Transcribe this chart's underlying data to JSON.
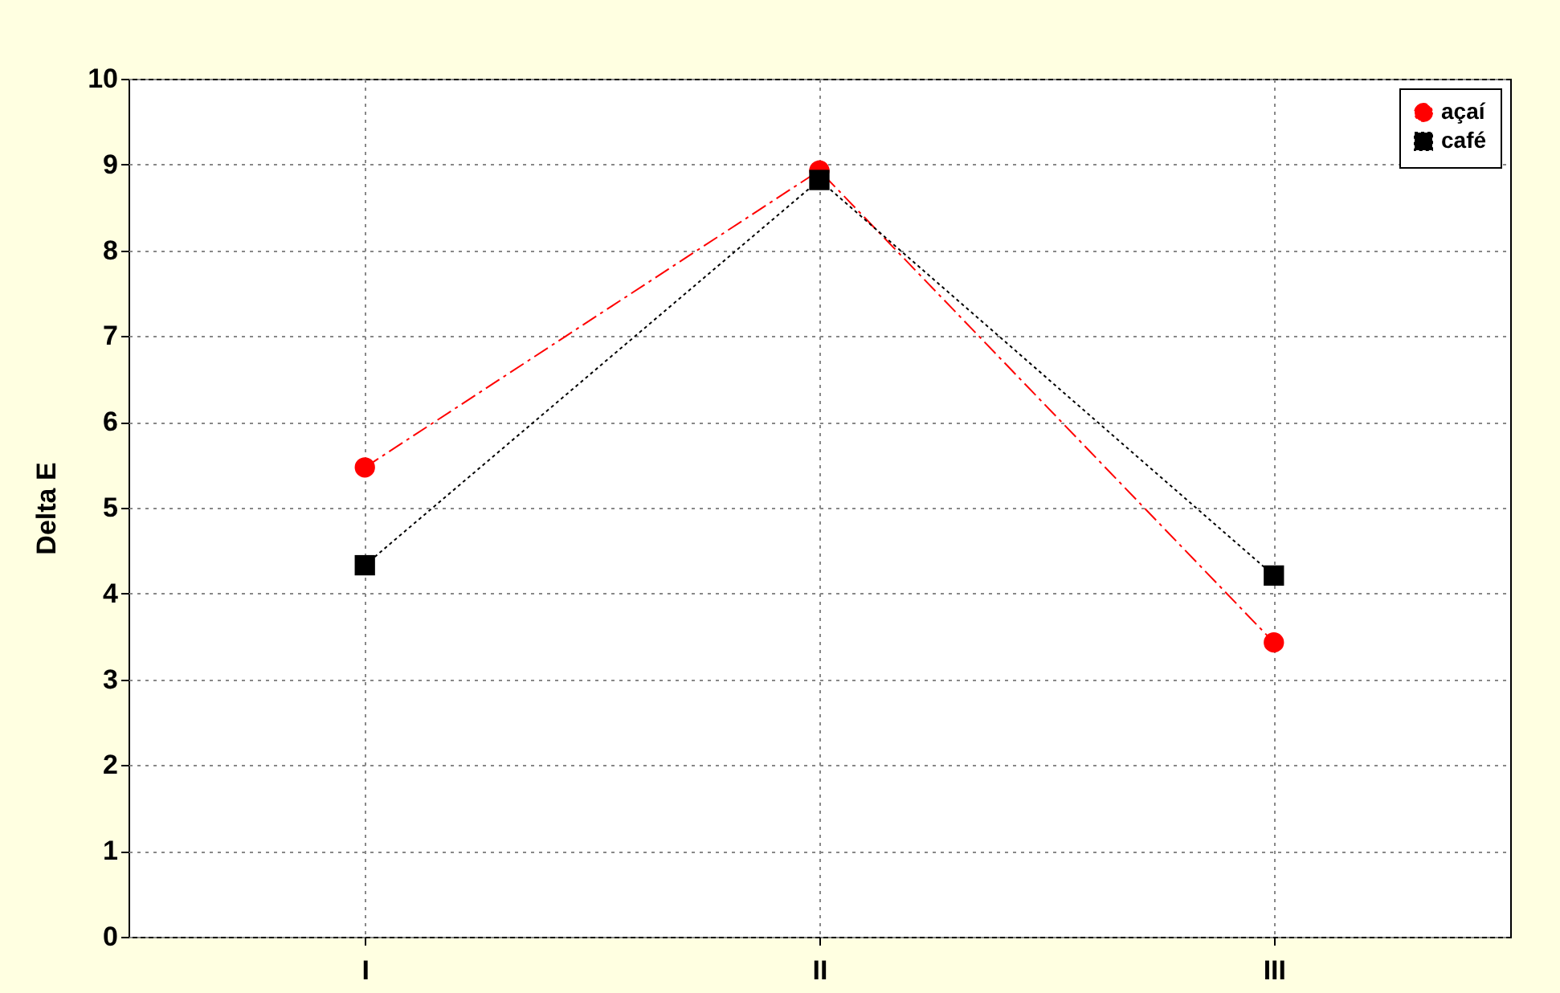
{
  "chart_data": {
    "type": "line",
    "ylabel": "Delta E",
    "categories": [
      "I",
      "II",
      "III"
    ],
    "series": [
      {
        "name": "açaí",
        "color": "#ff0000",
        "marker": "circle",
        "line_style": "dashdot",
        "values": [
          5.47,
          8.93,
          3.43
        ]
      },
      {
        "name": "café",
        "color": "#000000",
        "marker": "square",
        "line_style": "dotted",
        "values": [
          4.33,
          8.82,
          4.21
        ]
      }
    ],
    "ylim": [
      0,
      10
    ],
    "yticks": [
      0,
      1,
      2,
      3,
      4,
      5,
      6,
      7,
      8,
      9,
      10
    ],
    "grid": true,
    "legend": "top right"
  }
}
